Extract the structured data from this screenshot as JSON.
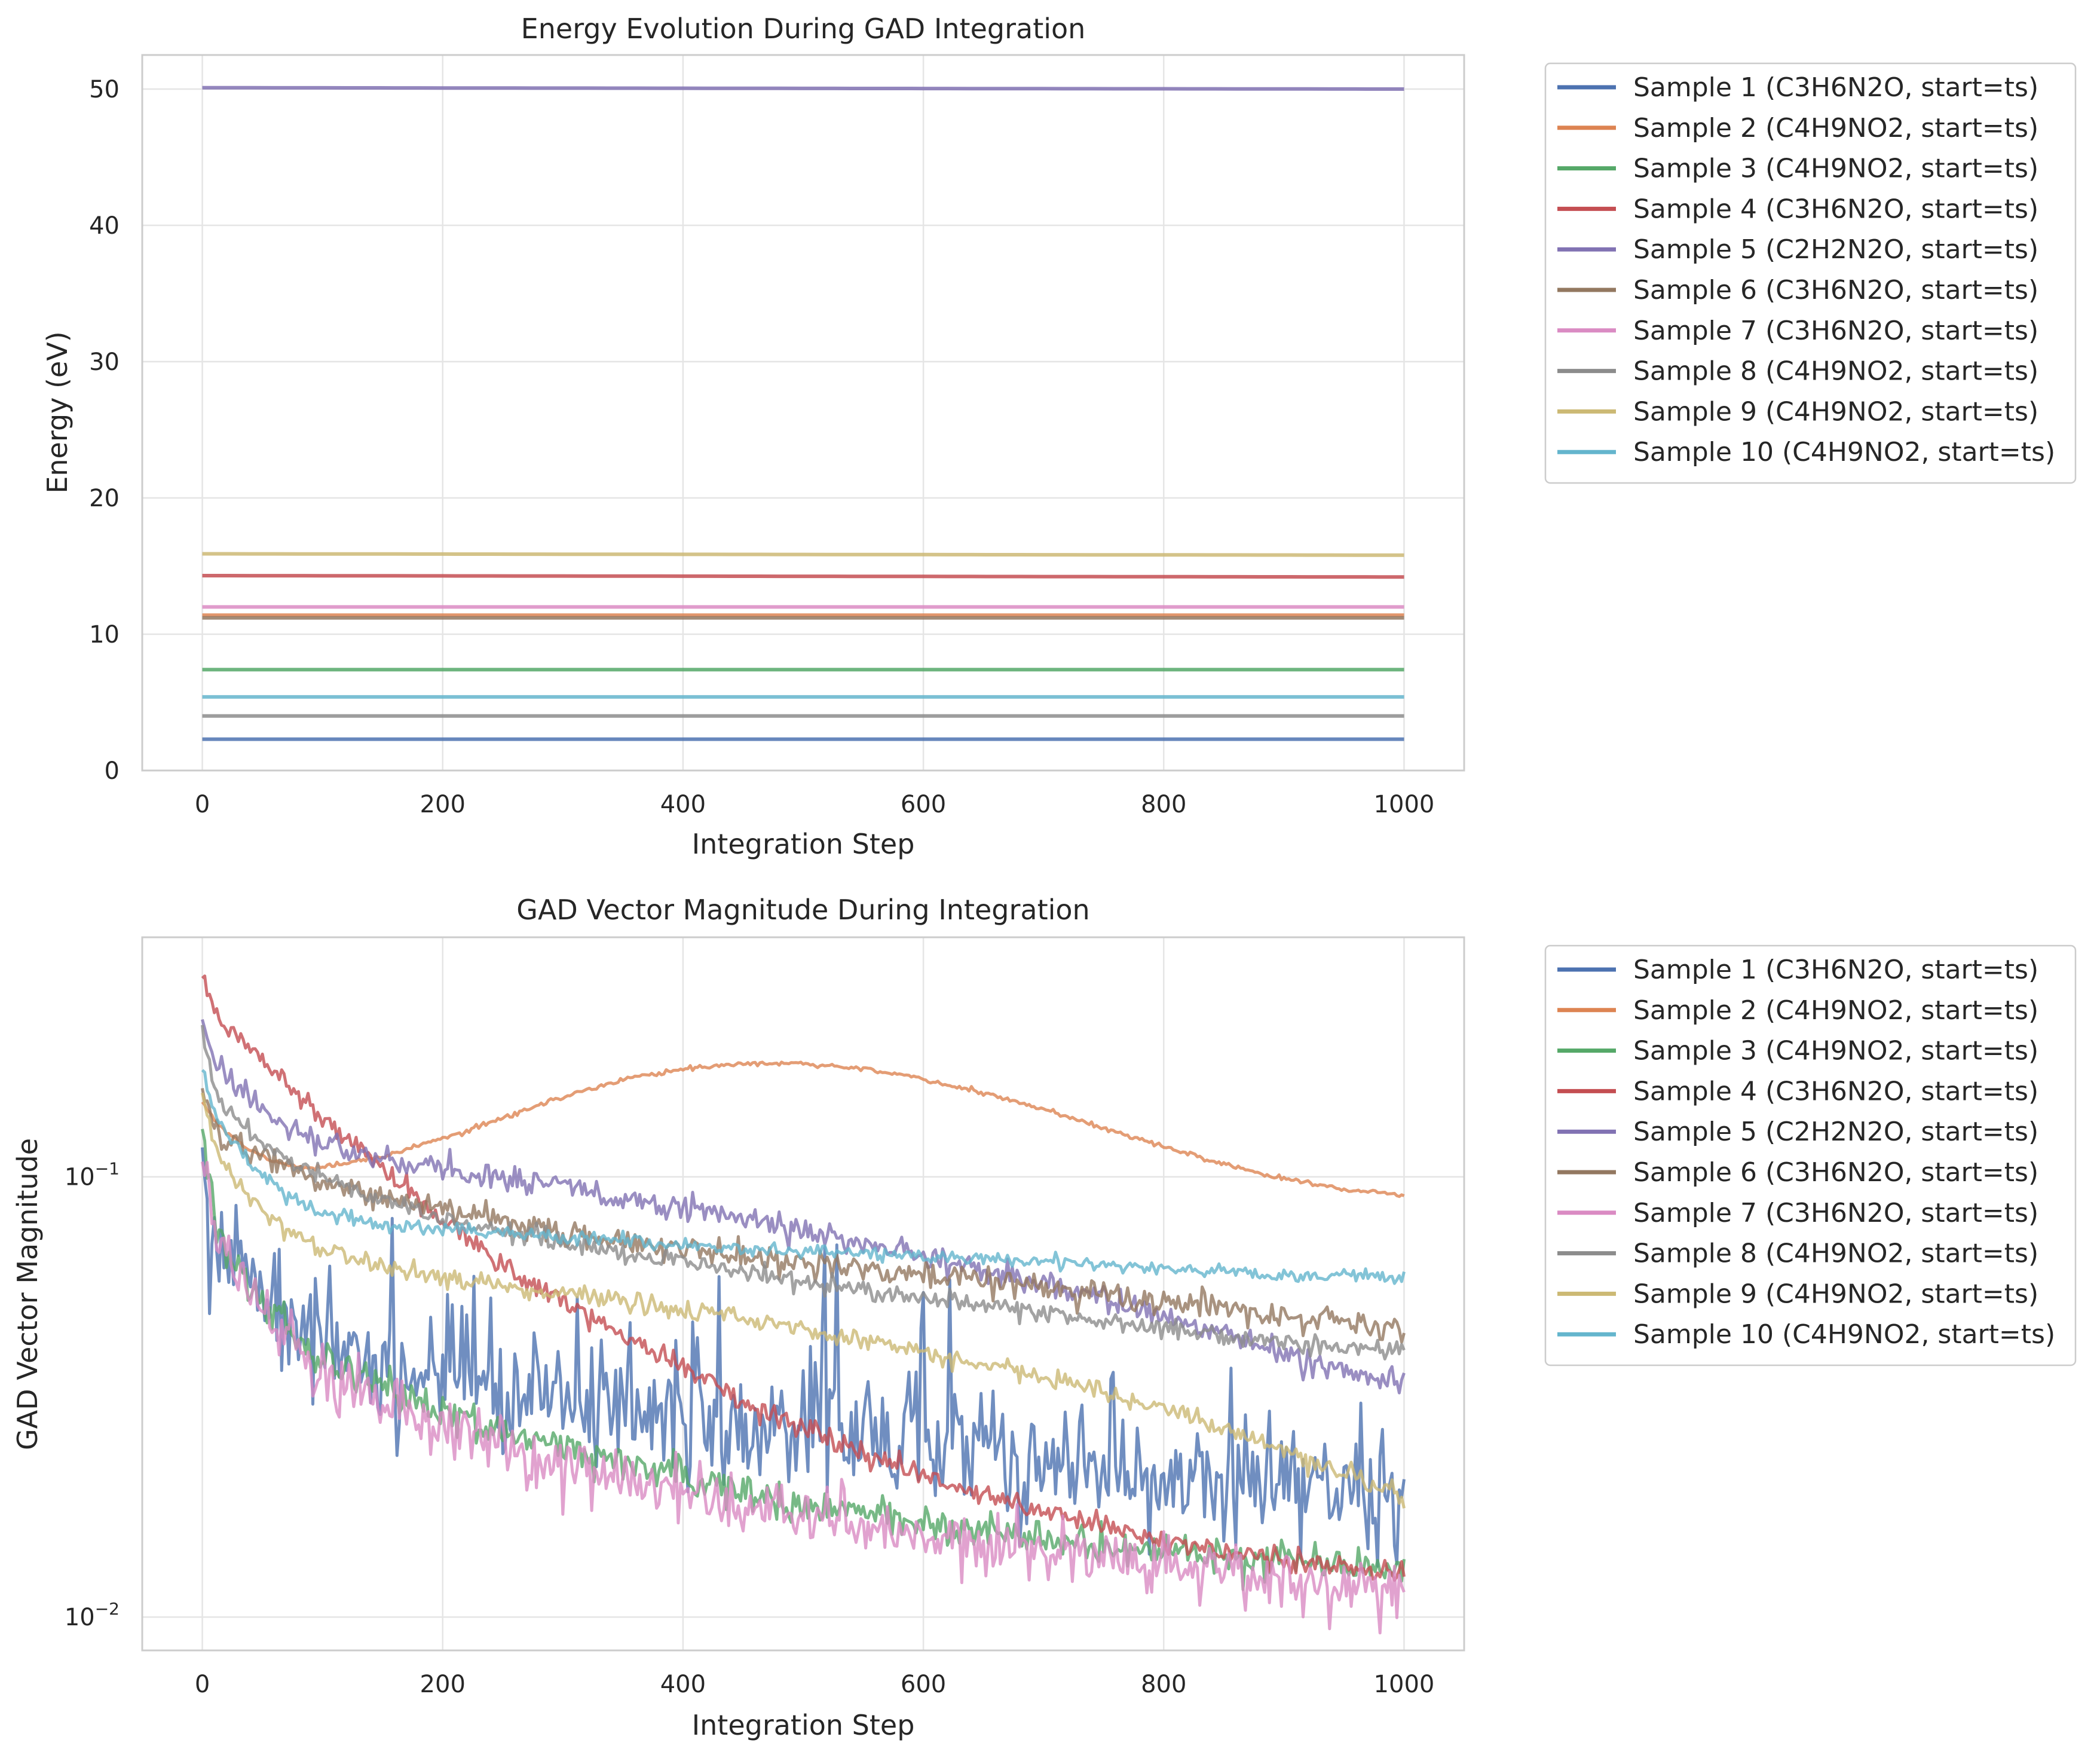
{
  "colors": {
    "s1": "#4c72b0",
    "s2": "#dd8452",
    "s3": "#55a868",
    "s4": "#c44e52",
    "s5": "#8172b3",
    "s6": "#937860",
    "s7": "#da8bc3",
    "s8": "#8c8c8c",
    "s9": "#ccb974",
    "s10": "#64b5cd",
    "grid": "#e5e5e5",
    "spine": "#cccccc"
  },
  "chart_data": [
    {
      "type": "line",
      "title": "Energy Evolution During GAD Integration",
      "xlabel": "Integration Step",
      "ylabel": "Energy (eV)",
      "xlim": [
        -50,
        1050
      ],
      "ylim": [
        0,
        52.5
      ],
      "xticks": [
        0,
        200,
        400,
        600,
        800,
        1000
      ],
      "yticks": [
        0,
        10,
        20,
        30,
        40,
        50
      ],
      "grid": true,
      "legend_position": "outside-right-top",
      "x_range": [
        0,
        1000
      ],
      "series": [
        {
          "name": "Sample 1 (C3H6N2O, start=ts)",
          "start": 2.3,
          "end": 2.3,
          "color_key": "s1"
        },
        {
          "name": "Sample 2 (C4H9NO2, start=ts)",
          "start": 11.4,
          "end": 11.4,
          "color_key": "s2"
        },
        {
          "name": "Sample 3 (C4H9NO2, start=ts)",
          "start": 7.4,
          "end": 7.4,
          "color_key": "s3"
        },
        {
          "name": "Sample 4 (C3H6N2O, start=ts)",
          "start": 14.3,
          "end": 14.2,
          "color_key": "s4"
        },
        {
          "name": "Sample 5 (C2H2N2O, start=ts)",
          "start": 50.1,
          "end": 50.0,
          "color_key": "s5"
        },
        {
          "name": "Sample 6 (C3H6N2O, start=ts)",
          "start": 11.2,
          "end": 11.2,
          "color_key": "s6"
        },
        {
          "name": "Sample 7 (C3H6N2O, start=ts)",
          "start": 12.0,
          "end": 12.0,
          "color_key": "s7"
        },
        {
          "name": "Sample 8 (C4H9NO2, start=ts)",
          "start": 4.0,
          "end": 4.0,
          "color_key": "s8"
        },
        {
          "name": "Sample 9 (C4H9NO2, start=ts)",
          "start": 15.9,
          "end": 15.8,
          "color_key": "s9"
        },
        {
          "name": "Sample 10 (C4H9NO2, start=ts)",
          "start": 5.4,
          "end": 5.4,
          "color_key": "s10"
        }
      ]
    },
    {
      "type": "line",
      "title": "GAD Vector Magnitude During Integration",
      "xlabel": "Integration Step",
      "ylabel": "GAD Vector Magnitude",
      "yscale": "log",
      "xlim": [
        -50,
        1050
      ],
      "ylim": [
        0.0084,
        0.35
      ],
      "xticks": [
        0,
        200,
        400,
        600,
        800,
        1000
      ],
      "yticks": [
        {
          "value": 0.01,
          "base": "10",
          "exp": "−2"
        },
        {
          "value": 0.1,
          "base": "10",
          "exp": "−1"
        }
      ],
      "grid": true,
      "legend_position": "outside-right-top",
      "series": [
        {
          "name": "Sample 1 (C3H6N2O, start=ts)",
          "color_key": "s1",
          "noise": 0.18,
          "x": [
            0,
            5,
            10,
            20,
            30,
            50,
            80,
            100,
            150,
            200,
            300,
            400,
            500,
            600,
            700,
            800,
            900,
            1000
          ],
          "y": [
            0.098,
            0.08,
            0.072,
            0.064,
            0.058,
            0.05,
            0.044,
            0.042,
            0.037,
            0.034,
            0.031,
            0.028,
            0.027,
            0.025,
            0.023,
            0.021,
            0.02,
            0.019
          ]
        },
        {
          "name": "Sample 2 (C4H9NO2, start=ts)",
          "color_key": "s2",
          "noise": 0.006,
          "x": [
            0,
            10,
            20,
            40,
            60,
            80,
            100,
            150,
            200,
            250,
            300,
            350,
            400,
            450,
            500,
            550,
            600,
            650,
            700,
            750,
            800,
            850,
            900,
            950,
            1000
          ],
          "y": [
            0.148,
            0.135,
            0.126,
            0.115,
            0.108,
            0.105,
            0.105,
            0.111,
            0.122,
            0.136,
            0.152,
            0.166,
            0.176,
            0.181,
            0.181,
            0.176,
            0.167,
            0.155,
            0.142,
            0.129,
            0.117,
            0.107,
            0.099,
            0.094,
            0.091
          ]
        },
        {
          "name": "Sample 3 (C4H9NO2, start=ts)",
          "color_key": "s3",
          "noise": 0.05,
          "x": [
            0,
            5,
            10,
            20,
            30,
            50,
            80,
            100,
            150,
            200,
            300,
            400,
            500,
            600,
            700,
            800,
            900,
            1000
          ],
          "y": [
            0.133,
            0.1,
            0.085,
            0.07,
            0.062,
            0.052,
            0.043,
            0.039,
            0.033,
            0.029,
            0.024,
            0.021,
            0.018,
            0.0165,
            0.015,
            0.014,
            0.0135,
            0.013
          ]
        },
        {
          "name": "Sample 4 (C3H6N2O, start=ts)",
          "color_key": "s4",
          "noise": 0.03,
          "x": [
            0,
            10,
            20,
            40,
            60,
            80,
            100,
            150,
            200,
            250,
            300,
            350,
            400,
            450,
            500,
            550,
            600,
            650,
            700,
            750,
            800,
            850,
            900,
            950,
            1000
          ],
          "y": [
            0.28,
            0.24,
            0.22,
            0.195,
            0.175,
            0.155,
            0.138,
            0.105,
            0.08,
            0.063,
            0.052,
            0.044,
            0.037,
            0.031,
            0.027,
            0.024,
            0.021,
            0.019,
            0.0175,
            0.016,
            0.0148,
            0.014,
            0.0135,
            0.013,
            0.0125
          ]
        },
        {
          "name": "Sample 5 (C2H2N2O, start=ts)",
          "color_key": "s5",
          "noise": 0.035,
          "x": [
            0,
            5,
            10,
            20,
            40,
            60,
            80,
            100,
            150,
            200,
            300,
            400,
            500,
            600,
            700,
            800,
            850,
            900,
            950,
            1000
          ],
          "y": [
            0.225,
            0.2,
            0.185,
            0.17,
            0.15,
            0.135,
            0.125,
            0.118,
            0.11,
            0.105,
            0.095,
            0.085,
            0.075,
            0.066,
            0.057,
            0.048,
            0.044,
            0.04,
            0.036,
            0.034
          ]
        },
        {
          "name": "Sample 6 (C3H6N2O, start=ts)",
          "color_key": "s6",
          "noise": 0.035,
          "x": [
            0,
            5,
            10,
            20,
            40,
            60,
            80,
            100,
            150,
            200,
            300,
            400,
            500,
            600,
            700,
            800,
            900,
            1000
          ],
          "y": [
            0.16,
            0.14,
            0.13,
            0.122,
            0.115,
            0.108,
            0.103,
            0.098,
            0.09,
            0.083,
            0.075,
            0.069,
            0.064,
            0.06,
            0.056,
            0.052,
            0.048,
            0.045
          ]
        },
        {
          "name": "Sample 7 (C3H6N2O, start=ts)",
          "color_key": "s7",
          "noise": 0.08,
          "x": [
            0,
            5,
            10,
            20,
            30,
            50,
            80,
            100,
            150,
            200,
            300,
            400,
            500,
            600,
            700,
            800,
            900,
            1000
          ],
          "y": [
            0.118,
            0.092,
            0.08,
            0.068,
            0.06,
            0.049,
            0.041,
            0.037,
            0.031,
            0.027,
            0.022,
            0.019,
            0.017,
            0.0155,
            0.0142,
            0.013,
            0.012,
            0.0115
          ]
        },
        {
          "name": "Sample 8 (C4H9NO2, start=ts)",
          "color_key": "s8",
          "noise": 0.025,
          "x": [
            0,
            5,
            10,
            20,
            40,
            60,
            80,
            100,
            150,
            200,
            300,
            400,
            500,
            600,
            700,
            800,
            900,
            1000
          ],
          "y": [
            0.21,
            0.18,
            0.16,
            0.14,
            0.125,
            0.115,
            0.107,
            0.1,
            0.088,
            0.08,
            0.071,
            0.064,
            0.058,
            0.053,
            0.049,
            0.045,
            0.042,
            0.04
          ]
        },
        {
          "name": "Sample 9 (C4H9NO2, start=ts)",
          "color_key": "s9",
          "noise": 0.025,
          "x": [
            0,
            5,
            10,
            20,
            40,
            60,
            80,
            100,
            150,
            200,
            300,
            400,
            500,
            600,
            700,
            800,
            850,
            900,
            950,
            1000
          ],
          "y": [
            0.155,
            0.135,
            0.12,
            0.105,
            0.09,
            0.08,
            0.073,
            0.068,
            0.063,
            0.059,
            0.054,
            0.05,
            0.045,
            0.04,
            0.035,
            0.03,
            0.027,
            0.024,
            0.021,
            0.019
          ]
        },
        {
          "name": "Sample 10 (C4H9NO2, start=ts)",
          "color_key": "s10",
          "noise": 0.018,
          "x": [
            0,
            5,
            10,
            20,
            40,
            60,
            80,
            100,
            150,
            200,
            300,
            400,
            500,
            600,
            700,
            800,
            900,
            1000
          ],
          "y": [
            0.18,
            0.155,
            0.14,
            0.125,
            0.107,
            0.096,
            0.088,
            0.083,
            0.078,
            0.076,
            0.073,
            0.07,
            0.068,
            0.066,
            0.064,
            0.062,
            0.06,
            0.059
          ]
        }
      ]
    }
  ]
}
